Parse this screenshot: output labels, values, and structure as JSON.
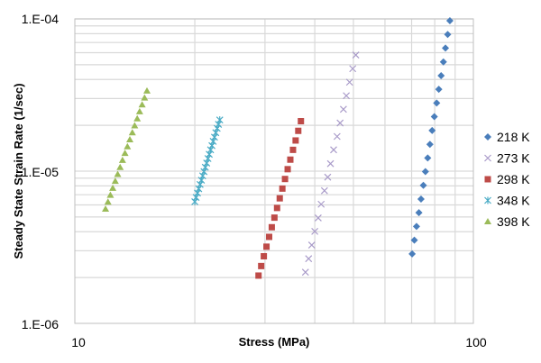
{
  "chart_data": {
    "type": "scatter",
    "title": "",
    "xlabel": "Stress (MPa)",
    "ylabel": "Steady State Strain Rate (1/sec)",
    "xscale": "log",
    "yscale": "log",
    "xlim": [
      10,
      100
    ],
    "ylim": [
      1e-06,
      0.0001
    ],
    "x_tick_labels": [
      "10",
      "100"
    ],
    "y_tick_labels": [
      "1.E-06",
      "1.E-05",
      "1.E-04"
    ],
    "grid": true,
    "legend_position": "right",
    "series": [
      {
        "name": "218 K",
        "marker": "diamond",
        "color": "#4a7ebb",
        "x": [
          70.2,
          71.1,
          72.0,
          73.0,
          73.9,
          74.9,
          75.8,
          76.8,
          77.8,
          78.8,
          79.8,
          80.9,
          81.9,
          83.0,
          84.1,
          85.1,
          86.2,
          87.3
        ],
        "y": [
          2.86e-06,
          3.52e-06,
          4.33e-06,
          5.33e-06,
          6.56e-06,
          8.07e-06,
          9.93e-06,
          1.22e-05,
          1.5e-05,
          1.85e-05,
          2.28e-05,
          2.8e-05,
          3.45e-05,
          4.24e-05,
          5.22e-05,
          6.43e-05,
          7.91e-05,
          9.73e-05
        ]
      },
      {
        "name": "273 K",
        "marker": "x",
        "color": "#a99bc9",
        "x": [
          37.9,
          38.6,
          39.3,
          40.0,
          40.8,
          41.5,
          42.3,
          43.1,
          43.8,
          44.6,
          45.5,
          46.3,
          47.2,
          48.0,
          48.9,
          49.8,
          50.7
        ],
        "y": [
          2.17e-06,
          2.66e-06,
          3.27e-06,
          4.02e-06,
          4.93e-06,
          6.06e-06,
          7.44e-06,
          9.13e-06,
          1.12e-05,
          1.38e-05,
          1.69e-05,
          2.07e-05,
          2.55e-05,
          3.13e-05,
          3.84e-05,
          4.71e-05,
          5.79e-05
        ]
      },
      {
        "name": "298 K",
        "marker": "square",
        "color": "#be4b48",
        "x": [
          28.9,
          29.35,
          29.8,
          30.26,
          30.73,
          31.2,
          31.68,
          32.17,
          32.67,
          33.17,
          33.68,
          34.2,
          34.73,
          35.27,
          35.81,
          36.36,
          36.92
        ],
        "y": [
          2.06e-06,
          2.38e-06,
          2.76e-06,
          3.19e-06,
          3.7e-06,
          4.28e-06,
          4.95e-06,
          5.73e-06,
          6.63e-06,
          7.68e-06,
          8.88e-06,
          1.03e-05,
          1.19e-05,
          1.38e-05,
          1.59e-05,
          1.84e-05,
          2.13e-05
        ]
      },
      {
        "name": "348 K",
        "marker": "star",
        "color": "#4bacc6",
        "x": [
          20.0,
          20.15,
          20.31,
          20.46,
          20.62,
          20.78,
          20.93,
          21.09,
          21.25,
          21.42,
          21.58,
          21.74,
          21.91,
          22.08,
          22.24,
          22.41,
          22.58,
          22.76,
          22.93,
          23.1
        ],
        "y": [
          6.3e-06,
          6.72e-06,
          7.18e-06,
          7.66e-06,
          8.17e-06,
          8.72e-06,
          9.31e-06,
          9.93e-06,
          1.06e-05,
          1.13e-05,
          1.21e-05,
          1.29e-05,
          1.38e-05,
          1.47e-05,
          1.57e-05,
          1.67e-05,
          1.79e-05,
          1.91e-05,
          2.03e-05,
          2.17e-05
        ]
      },
      {
        "name": "398 K",
        "marker": "triangle",
        "color": "#9bbb59",
        "x": [
          11.94,
          12.11,
          12.28,
          12.45,
          12.63,
          12.81,
          12.99,
          13.17,
          13.36,
          13.55,
          13.74,
          13.94,
          14.13,
          14.34,
          14.54,
          14.75,
          14.96,
          15.17
        ],
        "y": [
          5.64e-06,
          6.27e-06,
          6.96e-06,
          7.73e-06,
          8.59e-06,
          9.54e-06,
          1.06e-05,
          1.18e-05,
          1.31e-05,
          1.45e-05,
          1.61e-05,
          1.79e-05,
          1.99e-05,
          2.21e-05,
          2.46e-05,
          2.73e-05,
          3.03e-05,
          3.37e-05
        ]
      }
    ]
  }
}
